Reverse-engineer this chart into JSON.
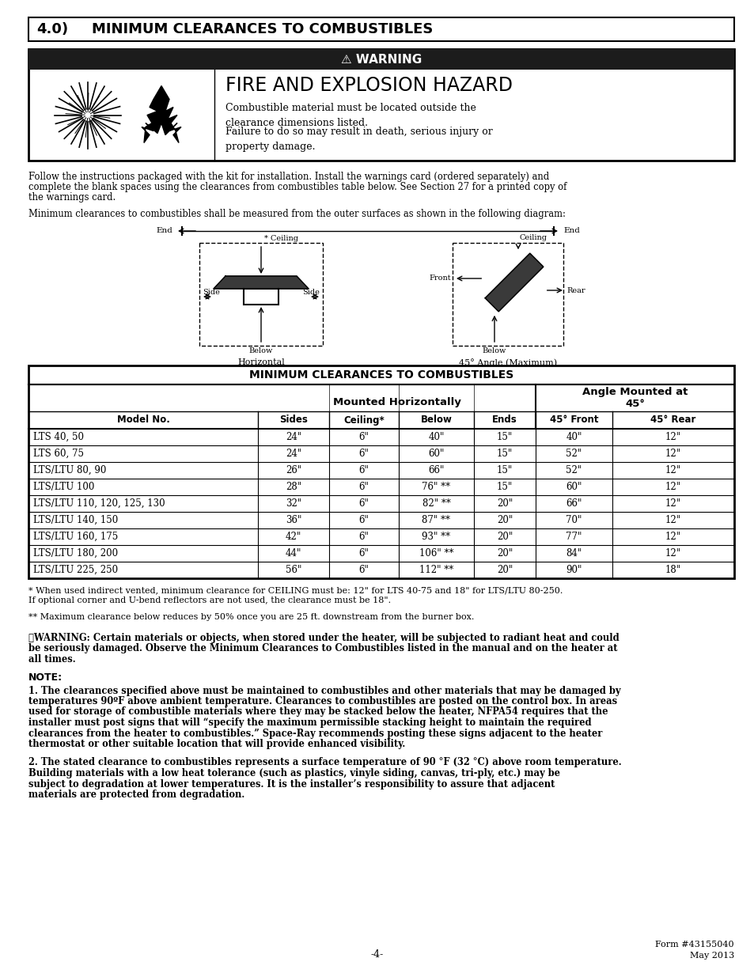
{
  "page_title_num": "4.0)",
  "page_title_text": "MINIMUM CLEARANCES TO COMBUSTIBLES",
  "warning_header": "⚠ WARNING",
  "fire_title": "FIRE AND EXPLOSION HAZARD",
  "fire_body1": "Combustible material must be located outside the\nclearance dimensions listed.",
  "fire_body2": "Failure to do so may result in death, serious injury or\nproperty damage.",
  "para1": "Follow the instructions packaged with the kit for installation. Install the warnings card (ordered separately) and complete the blank spaces using the clearances from combustibles table below. See Section 27 for a printed copy of the warnings card.",
  "para2": "Minimum clearances to combustibles shall be measured from the outer surfaces as shown in the following diagram:",
  "table_title": "MINIMUM CLEARANCES TO COMBUSTIBLES",
  "rows": [
    [
      "LTS 40, 50",
      "24\"",
      "6\"",
      "40\"",
      "15\"",
      "40\"",
      "12\""
    ],
    [
      "LTS 60, 75",
      "24\"",
      "6\"",
      "60\"",
      "15\"",
      "52\"",
      "12\""
    ],
    [
      "LTS/LTU 80, 90",
      "26\"",
      "6\"",
      "66\"",
      "15\"",
      "52\"",
      "12\""
    ],
    [
      "LTS/LTU 100",
      "28\"",
      "6\"",
      "76\" **",
      "15\"",
      "60\"",
      "12\""
    ],
    [
      "LTS/LTU 110, 120, 125, 130",
      "32\"",
      "6\"",
      "82\" **",
      "20\"",
      "66\"",
      "12\""
    ],
    [
      "LTS/LTU 140, 150",
      "36\"",
      "6\"",
      "87\" **",
      "20\"",
      "70\"",
      "12\""
    ],
    [
      "LTS/LTU 160, 175",
      "42\"",
      "6\"",
      "93\" **",
      "20\"",
      "77\"",
      "12\""
    ],
    [
      "LTS/LTU 180, 200",
      "44\"",
      "6\"",
      "106\" **",
      "20\"",
      "84\"",
      "12\""
    ],
    [
      "LTS/LTU 225, 250",
      "56\"",
      "6\"",
      "112\" **",
      "20\"",
      "90\"",
      "18\""
    ]
  ],
  "footnote1": "* When used indirect vented, minimum clearance for CEILING must be: 12\" for LTS 40-75 and 18\" for LTS/LTU 80-250. If optional corner and U-bend reflectors are not used, the clearance must be 18\".",
  "footnote2": "** Maximum clearance below reduces by 50% once you are 25 ft. downstream from the burner box.",
  "warning_bold": "⚠WARNING: Certain materials or objects, when stored under the heater, will be subjected to radiant heat and could be seriously damaged. Observe the Minimum Clearances to Combustibles listed in the manual and on the heater at all times.",
  "note_label": "NOTE:",
  "note1": "1. The clearances specified above must be maintained to combustibles and other materials that may be damaged by temperatures 90ºF above ambient temperature. Clearances to combustibles are posted on the control box. In areas used for storage of combustible materials where they may be stacked below the heater, NFPA54 requires that the installer must post signs that will “specify the maximum permissible stacking height to maintain the required clearances from the heater to combustibles.” Space-Ray recommends posting these signs adjacent to the heater thermostat or other suitable location that will provide enhanced visibility.",
  "note2": "2. The stated clearance to combustibles represents a surface temperature of 90 °F (32 °C) above room temperature. Building materials with a low heat tolerance (such as plastics, vinyle siding, canvas, tri-ply, etc.) may be subject to degradation at lower temperatures. It is the installer’s responsibility to assure that adjacent materials are protected from degradation.",
  "footer_center": "-4-",
  "footer_right": "Form #43155040\nMay 2013"
}
